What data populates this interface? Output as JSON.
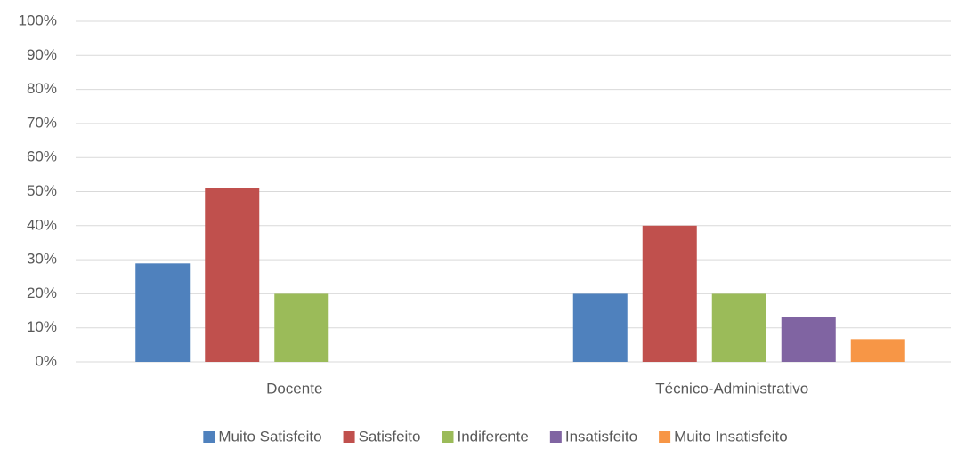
{
  "chart_data": {
    "type": "bar",
    "categories": [
      "Docente",
      "Técnico-Administrativo"
    ],
    "series": [
      {
        "name": "Muito Satisfeito",
        "color": "#4f81bd",
        "values": [
          28.9,
          20
        ]
      },
      {
        "name": "Satisfeito",
        "color": "#c0504d",
        "values": [
          51.1,
          40
        ]
      },
      {
        "name": "Indiferente",
        "color": "#9bbb59",
        "values": [
          20,
          20
        ]
      },
      {
        "name": "Insatisfeito",
        "color": "#8064a2",
        "values": [
          0,
          13.3
        ]
      },
      {
        "name": "Muito Insatisfeito",
        "color": "#f79646",
        "values": [
          0,
          6.7
        ]
      }
    ],
    "ylim": [
      0,
      100
    ],
    "yticks": [
      {
        "value": 0,
        "label": "0%"
      },
      {
        "value": 10,
        "label": "10%"
      },
      {
        "value": 20,
        "label": "20%"
      },
      {
        "value": 30,
        "label": "30%"
      },
      {
        "value": 40,
        "label": "40%"
      },
      {
        "value": 50,
        "label": "50%"
      },
      {
        "value": 60,
        "label": "60%"
      },
      {
        "value": 70,
        "label": "70%"
      },
      {
        "value": 80,
        "label": "80%"
      },
      {
        "value": 90,
        "label": "90%"
      },
      {
        "value": 100,
        "label": "100%"
      }
    ],
    "grid": true,
    "legend": "bottom"
  }
}
